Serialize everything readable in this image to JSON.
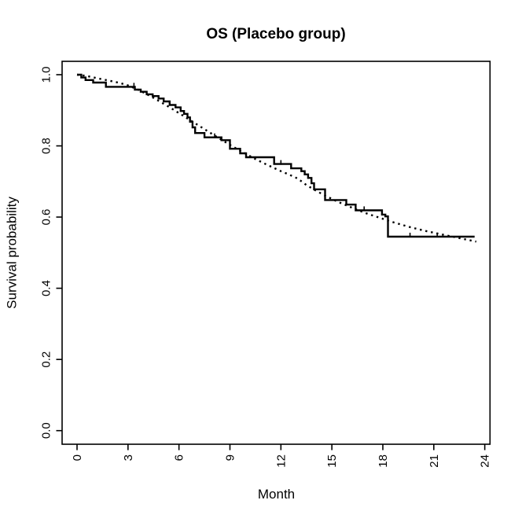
{
  "figure": {
    "kind": "R base-graphics survival plot",
    "background_color": "#ffffff",
    "foreground_color": "#000000"
  },
  "chart_data": {
    "type": "line",
    "title": "OS (Placebo group)",
    "xlabel": "Month",
    "ylabel": "Survival probability",
    "xlim": [
      0,
      24
    ],
    "ylim": [
      0.0,
      1.0
    ],
    "x_ticks": [
      0,
      3,
      6,
      9,
      12,
      15,
      18,
      21,
      24
    ],
    "y_ticks": [
      "0.0",
      "0.2",
      "0.4",
      "0.6",
      "0.8",
      "1.0"
    ],
    "tick_label_rotation_deg": -90,
    "grid": false,
    "legend": null,
    "series": [
      {
        "name": "kaplan-meier-step-curve",
        "style": "solid-step",
        "color": "#000000",
        "line_width": 2.4,
        "points": [
          [
            0,
            1.0
          ],
          [
            0.25,
            0.992
          ],
          [
            0.5,
            0.985
          ],
          [
            0.95,
            0.978
          ],
          [
            1.7,
            0.966
          ],
          [
            3.4,
            0.958
          ],
          [
            3.75,
            0.952
          ],
          [
            4.1,
            0.945
          ],
          [
            4.45,
            0.94
          ],
          [
            4.8,
            0.933
          ],
          [
            5.1,
            0.925
          ],
          [
            5.45,
            0.915
          ],
          [
            5.8,
            0.908
          ],
          [
            6.1,
            0.898
          ],
          [
            6.3,
            0.89
          ],
          [
            6.5,
            0.88
          ],
          [
            6.65,
            0.868
          ],
          [
            6.8,
            0.852
          ],
          [
            6.95,
            0.836
          ],
          [
            7.5,
            0.824
          ],
          [
            8.5,
            0.816
          ],
          [
            9.0,
            0.792
          ],
          [
            9.6,
            0.779
          ],
          [
            9.95,
            0.768
          ],
          [
            11.6,
            0.749
          ],
          [
            12.6,
            0.737
          ],
          [
            13.2,
            0.729
          ],
          [
            13.4,
            0.72
          ],
          [
            13.6,
            0.71
          ],
          [
            13.8,
            0.695
          ],
          [
            13.95,
            0.678
          ],
          [
            14.6,
            0.648
          ],
          [
            15.85,
            0.635
          ],
          [
            16.4,
            0.619
          ],
          [
            17.95,
            0.607
          ],
          [
            18.15,
            0.602
          ],
          [
            18.3,
            0.545
          ],
          [
            23.4,
            0.545
          ]
        ],
        "censor_mark_times": [
          3.35,
          8.1,
          12.0,
          16.9,
          19.6,
          21.2
        ]
      },
      {
        "name": "fitted-survival-dotted-curve",
        "style": "dotted-smooth",
        "color": "#000000",
        "line_width": 2.4,
        "points": [
          [
            0,
            1.0
          ],
          [
            0.5,
            0.997
          ],
          [
            1,
            0.992
          ],
          [
            1.5,
            0.987
          ],
          [
            2,
            0.982
          ],
          [
            2.5,
            0.977
          ],
          [
            3,
            0.97
          ],
          [
            3.5,
            0.96
          ],
          [
            4,
            0.948
          ],
          [
            4.5,
            0.935
          ],
          [
            5,
            0.921
          ],
          [
            5.5,
            0.907
          ],
          [
            6,
            0.892
          ],
          [
            6.5,
            0.877
          ],
          [
            7,
            0.862
          ],
          [
            7.5,
            0.847
          ],
          [
            8,
            0.832
          ],
          [
            8.5,
            0.817
          ],
          [
            9,
            0.803
          ],
          [
            9.5,
            0.789
          ],
          [
            10,
            0.776
          ],
          [
            10.5,
            0.763
          ],
          [
            11,
            0.751
          ],
          [
            11.5,
            0.74
          ],
          [
            12,
            0.729
          ],
          [
            12.5,
            0.719
          ],
          [
            13,
            0.708
          ],
          [
            13.5,
            0.69
          ],
          [
            14,
            0.676
          ],
          [
            14.5,
            0.663
          ],
          [
            15,
            0.651
          ],
          [
            15.5,
            0.64
          ],
          [
            16,
            0.63
          ],
          [
            16.5,
            0.62
          ],
          [
            17,
            0.611
          ],
          [
            17.5,
            0.603
          ],
          [
            18,
            0.595
          ],
          [
            18.5,
            0.587
          ],
          [
            19,
            0.58
          ],
          [
            19.5,
            0.573
          ],
          [
            20,
            0.567
          ],
          [
            20.5,
            0.561
          ],
          [
            21,
            0.556
          ],
          [
            21.5,
            0.551
          ],
          [
            22,
            0.546
          ],
          [
            22.5,
            0.541
          ],
          [
            23,
            0.536
          ],
          [
            23.5,
            0.531
          ]
        ]
      }
    ]
  }
}
